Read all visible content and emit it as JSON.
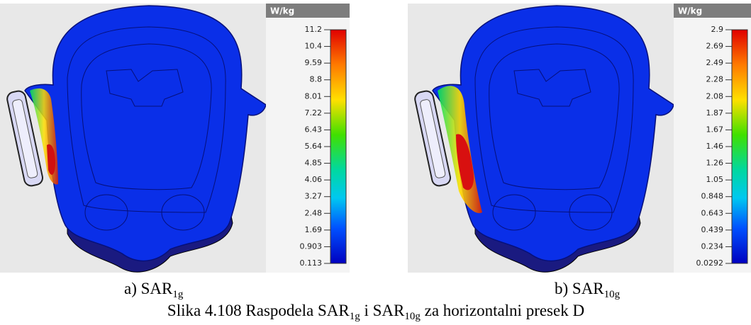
{
  "panels": [
    {
      "unit": "W/kg",
      "scale_labels": [
        "11.2",
        "10.4",
        "9.59",
        "8.8",
        "8.01",
        "7.22",
        "6.43",
        "5.64",
        "4.85",
        "4.06",
        "3.27",
        "2.48",
        "1.69",
        "0.903",
        "0.113"
      ],
      "caption_parts": [
        "a) SAR",
        "1g"
      ]
    },
    {
      "unit": "W/kg",
      "scale_labels": [
        "2.9",
        "2.69",
        "2.49",
        "2.28",
        "2.08",
        "1.87",
        "1.67",
        "1.46",
        "1.26",
        "1.05",
        "0.848",
        "0.643",
        "0.439",
        "0.234",
        "0.0292"
      ],
      "caption_parts": [
        "b) SAR",
        "10g"
      ]
    }
  ],
  "figure_caption_parts": [
    "Slika 4.108 Raspodela SAR",
    "1g",
    " i SAR",
    "10g",
    " za horizontalni presek D"
  ]
}
